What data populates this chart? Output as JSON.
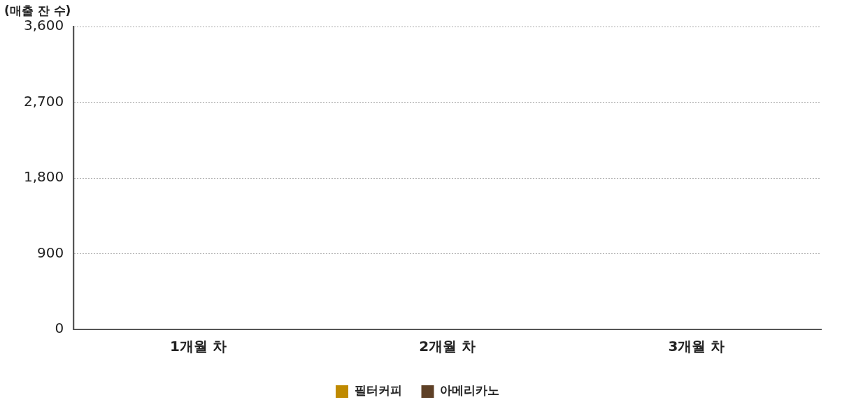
{
  "chart_data": {
    "type": "bar",
    "ylabel": "(매출 잔 수)",
    "categories": [
      "1개월 차",
      "2개월 차",
      "3개월 차"
    ],
    "series": [
      {
        "name": "필터커피",
        "color": "#bf8a00",
        "values": [
          0,
          0,
          0
        ]
      },
      {
        "name": "아메리카노",
        "color": "#5e4026",
        "values": [
          0,
          0,
          0
        ]
      }
    ],
    "ylim": [
      0,
      3600
    ],
    "yticks": [
      0,
      900,
      {
        "value": 1800,
        "label": "1,800"
      },
      {
        "value": 2700,
        "label": "2,700"
      },
      {
        "value": 3600,
        "label": "3,600"
      }
    ],
    "grid": "y",
    "legend": "bottom"
  }
}
